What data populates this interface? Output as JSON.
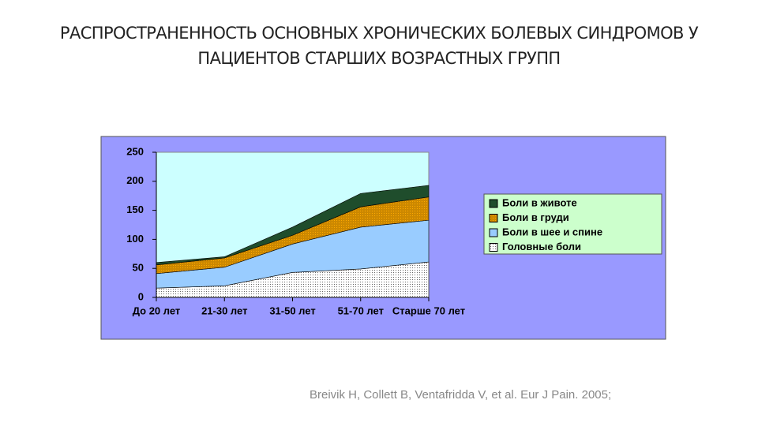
{
  "chart_data": {
    "type": "stacked-area",
    "title": "РАСПРОСТРАНЕННОСТЬ ОСНОВНЫХ ХРОНИЧЕСКИХ БОЛЕВЫХ СИНДРОМОВ У ПАЦИЕНТОВ СТАРШИХ ВОЗРАСТНЫХ ГРУПП",
    "categories": [
      "До 20 лет",
      "21-30 лет",
      "31-50 лет",
      "51-70 лет",
      "Старше 70 лет"
    ],
    "series": [
      {
        "name": "Головные боли",
        "color": "#ffffff",
        "values": [
          16,
          20,
          43,
          49,
          61
        ]
      },
      {
        "name": "Боли в шее и спине",
        "color": "#99ccff",
        "values": [
          25,
          32,
          49,
          72,
          72
        ]
      },
      {
        "name": "Боли в груди",
        "color": "#cc8800",
        "values": [
          15,
          16,
          15,
          35,
          40
        ]
      },
      {
        "name": "Боли в животе",
        "color": "#1f4d2c",
        "values": [
          4,
          2,
          14,
          23,
          20
        ]
      }
    ],
    "ylim": [
      0,
      250
    ],
    "yticks": [
      0,
      50,
      100,
      150,
      200,
      250
    ],
    "grid": false,
    "legend": "right",
    "source": "Breivik H, Collett B, Ventafridda V, et al. Eur J Pain. 2005;"
  }
}
